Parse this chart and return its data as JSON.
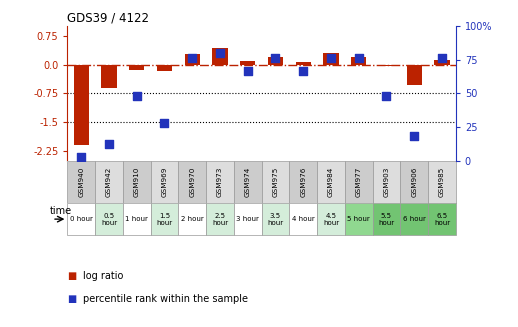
{
  "title": "GDS39 / 4122",
  "samples": [
    "GSM940",
    "GSM942",
    "GSM910",
    "GSM969",
    "GSM970",
    "GSM973",
    "GSM974",
    "GSM975",
    "GSM976",
    "GSM984",
    "GSM977",
    "GSM903",
    "GSM906",
    "GSM985"
  ],
  "time_labels": [
    "0 hour",
    "0.5\nhour",
    "1 hour",
    "1.5\nhour",
    "2 hour",
    "2.5\nhour",
    "3 hour",
    "3.5\nhour",
    "4 hour",
    "4.5\nhour",
    "5 hour",
    "5.5\nhour",
    "6 hour",
    "6.5\nhour"
  ],
  "time_colors": [
    "#ffffff",
    "#d4edda",
    "#ffffff",
    "#d4edda",
    "#ffffff",
    "#d4edda",
    "#ffffff",
    "#d4edda",
    "#ffffff",
    "#d4edda",
    "#90d890",
    "#72c472",
    "#72c472",
    "#72c472"
  ],
  "log_ratio": [
    -2.1,
    -0.62,
    -0.14,
    -0.16,
    0.27,
    0.42,
    0.08,
    0.2,
    0.06,
    0.3,
    0.2,
    -0.04,
    -0.52,
    0.13
  ],
  "percentile_rank": [
    3,
    12,
    48,
    28,
    76,
    80,
    67,
    76,
    67,
    76,
    76,
    48,
    18,
    76
  ],
  "ylim_left": [
    -2.5,
    1.0
  ],
  "ylim_right": [
    0,
    100
  ],
  "left_ticks": [
    0.75,
    0.0,
    -0.75,
    -1.5,
    -2.25
  ],
  "right_ticks": [
    100,
    75,
    50,
    25,
    0
  ],
  "bar_color_red": "#bb2200",
  "bar_color_blue": "#2233bb",
  "bg_color_sample_odd": "#cccccc",
  "bg_color_sample_even": "#dddddd",
  "legend_red": "log ratio",
  "legend_blue": "percentile rank within the sample"
}
